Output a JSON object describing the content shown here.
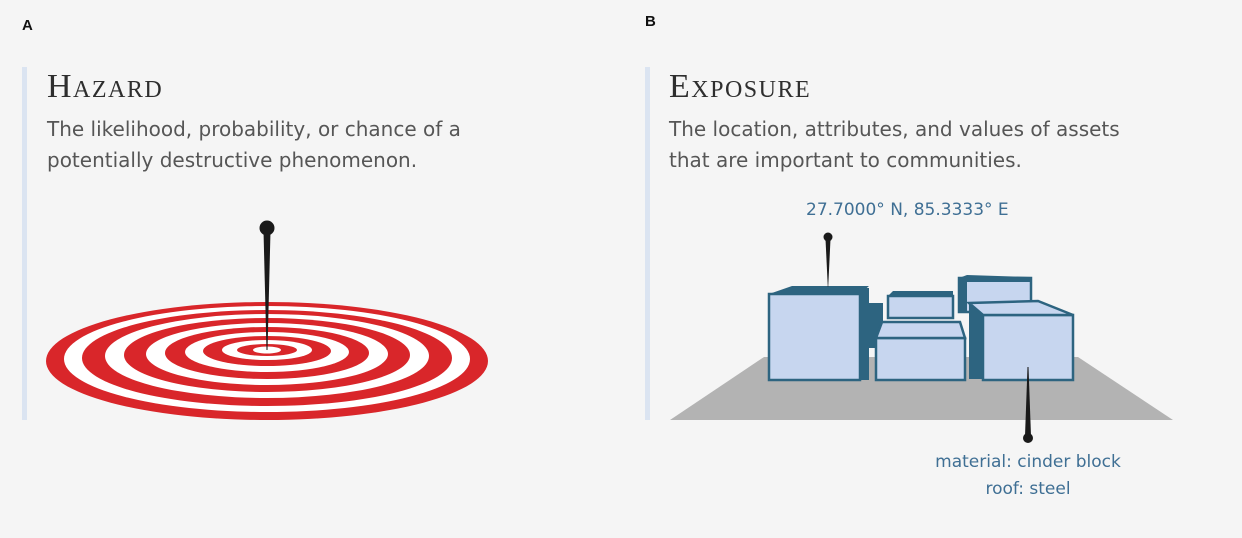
{
  "panels": [
    {
      "letter": "A",
      "title": "Hazard",
      "description_lines": [
        "The likelihood, probability, or chance of a",
        "potentially destructive phenomenon."
      ]
    },
    {
      "letter": "B",
      "title": "Exposure",
      "description_lines": [
        "The location, attributes, and values of assets",
        "that are important to communities."
      ],
      "coordinates_label": "27.7000° N, 85.3333° E",
      "attribute_lines": [
        "material: cinder block",
        "roof: steel"
      ]
    }
  ],
  "colors": {
    "target_red": "#d9262a",
    "building_fill": "#c7d6ef",
    "building_stroke": "#2d6480",
    "ground": "#b3b3b3",
    "pin": "#1a1a1a",
    "accent_bar": "#dbe4f1",
    "annotation_text": "#3f6f94"
  },
  "icons": [
    "target-icon",
    "pin-icon",
    "buildings-icon"
  ]
}
